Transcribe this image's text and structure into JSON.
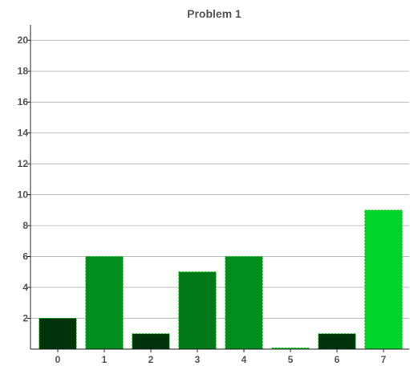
{
  "chart_data": {
    "type": "bar",
    "title": "Problem 1",
    "xlabel": "",
    "ylabel": "",
    "categories": [
      "0",
      "1",
      "2",
      "3",
      "4",
      "5",
      "6",
      "7"
    ],
    "values": [
      2,
      6,
      1,
      5,
      6,
      0,
      1,
      9
    ],
    "bar_colors": [
      "#00330a",
      "#008f1e",
      "#00330a",
      "#007a19",
      "#008f1e",
      "#00c828",
      "#00330a",
      "#00d42a"
    ],
    "bar_edge_color": "#00c400",
    "ylim": [
      0,
      21
    ],
    "yticks": [
      2,
      4,
      6,
      8,
      10,
      12,
      14,
      16,
      18,
      20
    ],
    "grid": true,
    "grid_color": "#bbbbbb",
    "axis_color": "#222222",
    "text_color": "#555555"
  }
}
